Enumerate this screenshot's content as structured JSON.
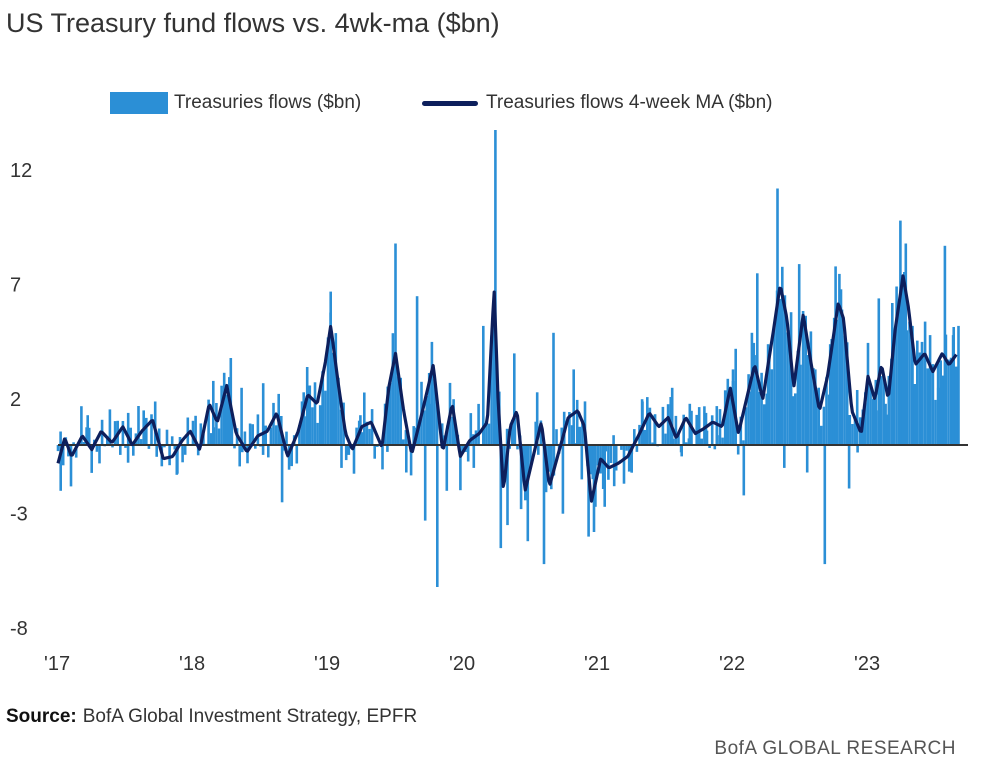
{
  "title": "US Treasury fund flows vs. 4wk-ma ($bn)",
  "source_label": "Source:",
  "source_text": "BofA Global Investment Strategy, EPFR",
  "brand": "BofA GLOBAL RESEARCH",
  "colors": {
    "bars": "#2b8fd6",
    "line": "#0d1f5c",
    "zero": "#333333",
    "text": "#333333"
  },
  "chart_data": {
    "type": "bar",
    "title": "US Treasury fund flows vs. 4wk-ma ($bn)",
    "xlabel": "",
    "ylabel": "",
    "ylim": [
      -8,
      14
    ],
    "yticks": [
      12,
      7,
      2,
      -3,
      -8
    ],
    "xticks": [
      "'17",
      "'18",
      "'19",
      "'20",
      "'21",
      "'22",
      "'23"
    ],
    "xlim": [
      2017.0,
      2023.95
    ],
    "grid": false,
    "legend_position": "top",
    "series": [
      {
        "name": "Treasuries flows ($bn)",
        "kind": "bar"
      },
      {
        "name": "Treasuries flows 4-week MA ($bn)",
        "kind": "line"
      }
    ],
    "anchors": [
      [
        2017.0,
        -0.8
      ],
      [
        2017.05,
        0.3
      ],
      [
        2017.1,
        -0.5
      ],
      [
        2017.18,
        0.4
      ],
      [
        2017.25,
        -0.2
      ],
      [
        2017.32,
        0.6
      ],
      [
        2017.4,
        0.1
      ],
      [
        2017.48,
        0.8
      ],
      [
        2017.55,
        0.0
      ],
      [
        2017.62,
        0.6
      ],
      [
        2017.7,
        1.1
      ],
      [
        2017.78,
        -0.6
      ],
      [
        2017.85,
        -0.5
      ],
      [
        2017.92,
        0.2
      ],
      [
        2017.98,
        0.6
      ],
      [
        2018.05,
        -0.2
      ],
      [
        2018.12,
        1.8
      ],
      [
        2018.18,
        1.0
      ],
      [
        2018.25,
        2.6
      ],
      [
        2018.32,
        0.5
      ],
      [
        2018.4,
        -0.3
      ],
      [
        2018.48,
        0.4
      ],
      [
        2018.55,
        0.6
      ],
      [
        2018.62,
        1.4
      ],
      [
        2018.7,
        -0.5
      ],
      [
        2018.78,
        0.6
      ],
      [
        2018.85,
        2.2
      ],
      [
        2018.92,
        1.8
      ],
      [
        2018.98,
        3.6
      ],
      [
        2019.02,
        5.2
      ],
      [
        2019.08,
        2.5
      ],
      [
        2019.13,
        0.5
      ],
      [
        2019.18,
        -0.2
      ],
      [
        2019.25,
        0.8
      ],
      [
        2019.32,
        1.0
      ],
      [
        2019.4,
        -0.1
      ],
      [
        2019.45,
        2.5
      ],
      [
        2019.5,
        4.0
      ],
      [
        2019.56,
        1.5
      ],
      [
        2019.62,
        -0.4
      ],
      [
        2019.7,
        1.5
      ],
      [
        2019.78,
        3.5
      ],
      [
        2019.85,
        -0.3
      ],
      [
        2019.92,
        1.8
      ],
      [
        2019.98,
        -0.5
      ],
      [
        2020.05,
        0.2
      ],
      [
        2020.12,
        0.5
      ],
      [
        2020.18,
        1.0
      ],
      [
        2020.23,
        6.8
      ],
      [
        2020.26,
        2.0
      ],
      [
        2020.3,
        -2.0
      ],
      [
        2020.35,
        0.8
      ],
      [
        2020.4,
        1.5
      ],
      [
        2020.46,
        -2.0
      ],
      [
        2020.52,
        -0.5
      ],
      [
        2020.58,
        1.0
      ],
      [
        2020.64,
        -1.8
      ],
      [
        2020.7,
        -0.5
      ],
      [
        2020.78,
        1.2
      ],
      [
        2020.85,
        1.5
      ],
      [
        2020.9,
        0.8
      ],
      [
        2020.95,
        -2.5
      ],
      [
        2021.02,
        -0.6
      ],
      [
        2021.08,
        -1.0
      ],
      [
        2021.15,
        -0.8
      ],
      [
        2021.22,
        -0.5
      ],
      [
        2021.3,
        0.4
      ],
      [
        2021.38,
        1.4
      ],
      [
        2021.45,
        0.8
      ],
      [
        2021.52,
        1.2
      ],
      [
        2021.58,
        0.3
      ],
      [
        2021.65,
        1.2
      ],
      [
        2021.72,
        0.5
      ],
      [
        2021.78,
        0.7
      ],
      [
        2021.85,
        1.0
      ],
      [
        2021.92,
        0.8
      ],
      [
        2021.98,
        2.5
      ],
      [
        2022.04,
        0.5
      ],
      [
        2022.1,
        2.0
      ],
      [
        2022.16,
        3.5
      ],
      [
        2022.22,
        2.0
      ],
      [
        2022.3,
        5.0
      ],
      [
        2022.35,
        7.0
      ],
      [
        2022.4,
        5.5
      ],
      [
        2022.45,
        2.5
      ],
      [
        2022.52,
        5.7
      ],
      [
        2022.58,
        3.5
      ],
      [
        2022.64,
        1.5
      ],
      [
        2022.7,
        3.0
      ],
      [
        2022.78,
        6.2
      ],
      [
        2022.82,
        5.5
      ],
      [
        2022.88,
        1.5
      ],
      [
        2022.95,
        0.5
      ],
      [
        2023.0,
        3.0
      ],
      [
        2023.05,
        2.0
      ],
      [
        2023.1,
        3.5
      ],
      [
        2023.15,
        2.0
      ],
      [
        2023.2,
        5.0
      ],
      [
        2023.26,
        7.4
      ],
      [
        2023.3,
        6.0
      ],
      [
        2023.35,
        3.5
      ],
      [
        2023.42,
        4.0
      ],
      [
        2023.48,
        3.2
      ],
      [
        2023.55,
        4.0
      ],
      [
        2023.6,
        3.5
      ],
      [
        2023.66,
        4.0
      ]
    ],
    "spikes": [
      [
        2017.02,
        -2.0
      ],
      [
        2017.22,
        1.3
      ],
      [
        2017.52,
        1.4
      ],
      [
        2017.72,
        1.9
      ],
      [
        2017.88,
        -1.3
      ],
      [
        2018.15,
        2.8
      ],
      [
        2018.28,
        3.8
      ],
      [
        2018.36,
        2.5
      ],
      [
        2018.52,
        2.7
      ],
      [
        2018.66,
        -2.5
      ],
      [
        2018.82,
        2.3
      ],
      [
        2018.96,
        3.2
      ],
      [
        2019.02,
        6.7
      ],
      [
        2019.1,
        -1.0
      ],
      [
        2019.24,
        1.3
      ],
      [
        2019.44,
        -0.3
      ],
      [
        2019.5,
        8.8
      ],
      [
        2019.58,
        -1.2
      ],
      [
        2019.66,
        6.5
      ],
      [
        2019.72,
        -3.3
      ],
      [
        2019.77,
        4.5
      ],
      [
        2019.81,
        -6.2
      ],
      [
        2019.88,
        -2.0
      ],
      [
        2019.93,
        2.0
      ],
      [
        2020.08,
        -1.0
      ],
      [
        2020.15,
        5.2
      ],
      [
        2020.24,
        13.8
      ],
      [
        2020.28,
        -4.5
      ],
      [
        2020.33,
        -3.5
      ],
      [
        2020.38,
        4.0
      ],
      [
        2020.43,
        -2.8
      ],
      [
        2020.48,
        -4.2
      ],
      [
        2020.55,
        2.3
      ],
      [
        2020.6,
        -5.2
      ],
      [
        2020.67,
        4.9
      ],
      [
        2020.74,
        -3.0
      ],
      [
        2020.82,
        3.3
      ],
      [
        2020.88,
        -1.5
      ],
      [
        2020.93,
        -4.0
      ],
      [
        2020.97,
        -3.8
      ],
      [
        2021.05,
        -2.7
      ],
      [
        2021.12,
        -1.8
      ],
      [
        2021.25,
        -0.4
      ],
      [
        2021.33,
        1.9
      ],
      [
        2021.42,
        1.3
      ],
      [
        2021.55,
        2.5
      ],
      [
        2021.62,
        -0.5
      ],
      [
        2021.68,
        1.8
      ],
      [
        2021.8,
        1.4
      ],
      [
        2021.88,
        1.7
      ],
      [
        2022.0,
        3.3
      ],
      [
        2022.02,
        4.2
      ],
      [
        2022.08,
        -2.2
      ],
      [
        2022.14,
        4.9
      ],
      [
        2022.18,
        7.5
      ],
      [
        2022.26,
        4.4
      ],
      [
        2022.33,
        11.2
      ],
      [
        2022.38,
        -1.0
      ],
      [
        2022.43,
        5.8
      ],
      [
        2022.49,
        7.9
      ],
      [
        2022.55,
        -1.2
      ],
      [
        2022.61,
        3.3
      ],
      [
        2022.68,
        -5.2
      ],
      [
        2022.72,
        4.4
      ],
      [
        2022.76,
        7.8
      ],
      [
        2022.8,
        6.8
      ],
      [
        2022.86,
        -1.9
      ],
      [
        2022.92,
        2.4
      ],
      [
        2022.98,
        2.3
      ],
      [
        2023.08,
        6.4
      ],
      [
        2023.13,
        1.8
      ],
      [
        2023.18,
        6.2
      ],
      [
        2023.24,
        9.8
      ],
      [
        2023.28,
        8.8
      ],
      [
        2023.33,
        5.2
      ],
      [
        2023.4,
        4.5
      ],
      [
        2023.46,
        4.8
      ],
      [
        2023.52,
        2.5
      ],
      [
        2023.57,
        8.7
      ],
      [
        2023.63,
        4.8
      ],
      [
        2023.67,
        5.2
      ]
    ]
  },
  "legend": {
    "bars_label": "Treasuries flows ($bn)",
    "line_label": "Treasuries flows 4-week MA ($bn)"
  }
}
